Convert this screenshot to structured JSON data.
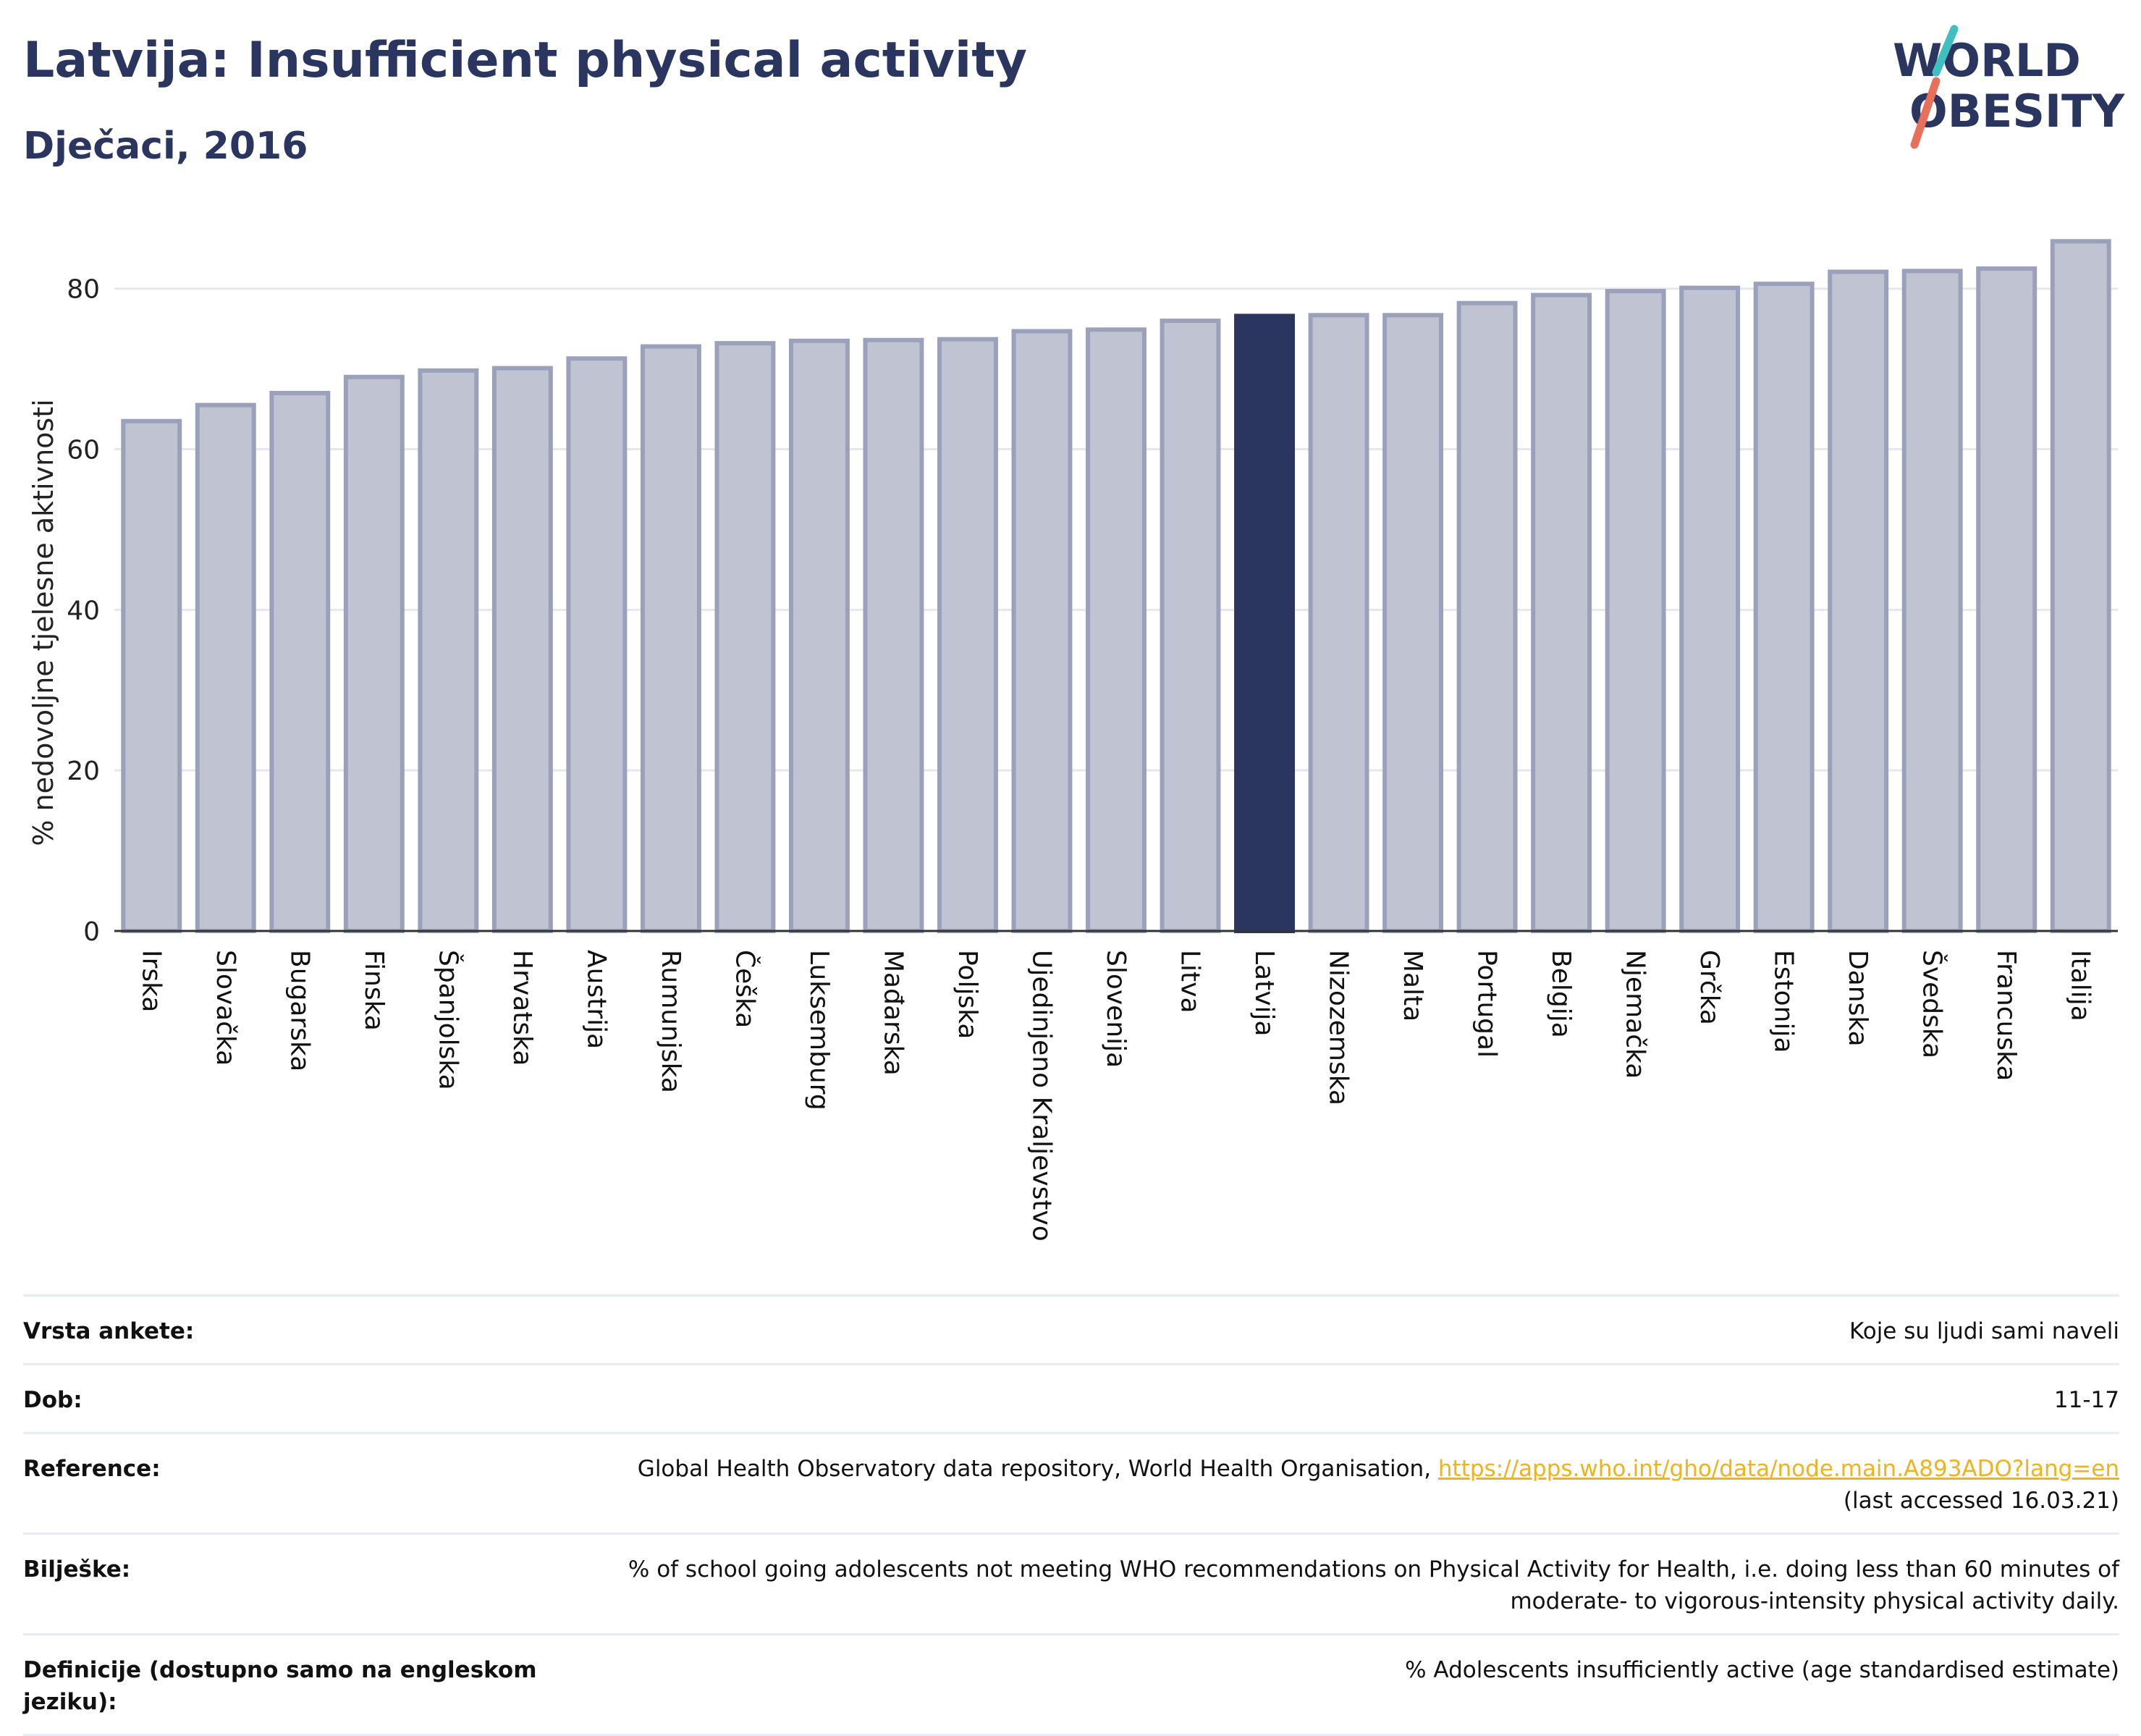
{
  "header": {
    "title": "Latvija: Insufficient physical activity",
    "subtitle": "Dječaci, 2016"
  },
  "logo": {
    "line1": "WORLD",
    "line2": "OBESITY"
  },
  "chart_data": {
    "type": "bar",
    "ylabel": "% nedovoljne tjelesne aktivnosti",
    "ylim": [
      0,
      88
    ],
    "yticks": [
      0,
      20,
      40,
      60,
      80
    ],
    "grid": true,
    "highlight": "Latvija",
    "colors": {
      "bar": "#c0c3d1",
      "bar_edge": "#9ba1bb",
      "highlight": "#2a3560"
    },
    "categories": [
      "Irska",
      "Slovačka",
      "Bugarska",
      "Finska",
      "Španjolska",
      "Hrvatska",
      "Austrija",
      "Rumunjska",
      "Češka",
      "Luksemburg",
      "Mađarska",
      "Poljska",
      "Ujedinjeno Kraljevstvo",
      "Slovenija",
      "Litva",
      "Latvija",
      "Nizozemska",
      "Malta",
      "Portugal",
      "Belgija",
      "Njemačka",
      "Grčka",
      "Estonija",
      "Danska",
      "Švedska",
      "Francuska",
      "Italija"
    ],
    "values": [
      63.5,
      65.5,
      67.0,
      69.0,
      69.8,
      70.1,
      71.3,
      72.8,
      73.2,
      73.5,
      73.6,
      73.7,
      74.7,
      74.9,
      76.0,
      76.6,
      76.7,
      76.7,
      78.2,
      79.2,
      79.7,
      80.1,
      80.6,
      82.1,
      82.2,
      82.5,
      85.9
    ]
  },
  "meta": [
    {
      "label": "Vrsta ankete:",
      "value": "Koje su ljudi sami naveli"
    },
    {
      "label": "Dob:",
      "value": "11-17"
    },
    {
      "label": "Reference:",
      "value": "Global Health Observatory data repository, World Health Organisation,",
      "link": "https://apps.who.int/gho/data/node.main.A893ADO?lang=en",
      "value2": "(last accessed 16.03.21)"
    },
    {
      "label": "Bilješke:",
      "value": "% of school going adolescents not meeting WHO recommendations on Physical Activity for Health, i.e. doing less than 60 minutes of moderate- to vigorous-intensity physical activity daily."
    },
    {
      "label": "Definicije (dostupno samo na engleskom jeziku):",
      "value": "% Adolescents insufficiently active (age standardised estimate)"
    }
  ]
}
